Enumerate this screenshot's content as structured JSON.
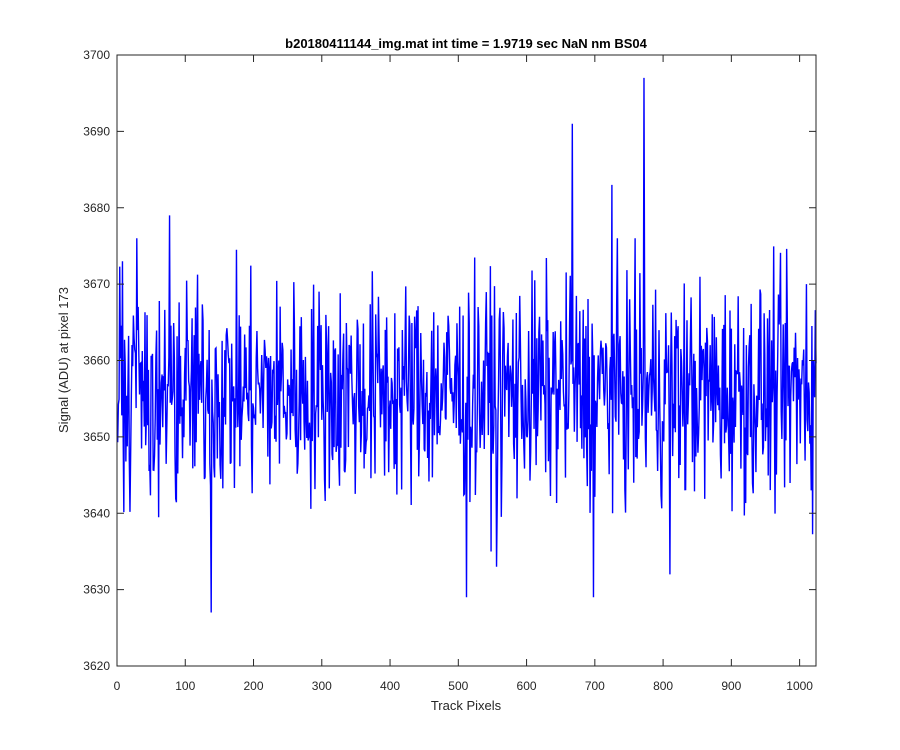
{
  "chart_data": {
    "type": "line",
    "title": "b20180411144_img.mat int time = 1.9719 sec  NaN nm BS04",
    "xlabel": "Track Pixels",
    "ylabel": "Signal (ADU) at pixel 173",
    "xlim": [
      0,
      1024
    ],
    "ylim": [
      3620,
      3700
    ],
    "xticks": [
      0,
      100,
      200,
      300,
      400,
      500,
      600,
      700,
      800,
      900,
      1000
    ],
    "yticks": [
      3620,
      3630,
      3640,
      3650,
      3660,
      3670,
      3680,
      3690,
      3700
    ],
    "grid": false,
    "line_color": "#0000ff",
    "series": [
      {
        "x_start": 1,
        "x_step": 1,
        "baseline": 3656,
        "noise_amplitude": 7,
        "seed": 20180411,
        "n_points": 1024,
        "features": [
          {
            "x": 8,
            "y": 3673
          },
          {
            "x": 77,
            "y": 3679
          },
          {
            "x": 138,
            "y": 3627
          },
          {
            "x": 512,
            "y": 3629
          },
          {
            "x": 556,
            "y": 3633
          },
          {
            "x": 667,
            "y": 3691
          },
          {
            "x": 698,
            "y": 3629
          },
          {
            "x": 725,
            "y": 3683
          },
          {
            "x": 772,
            "y": 3697
          },
          {
            "x": 810,
            "y": 3632
          },
          {
            "x": 1010,
            "y": 3670
          }
        ]
      }
    ]
  }
}
